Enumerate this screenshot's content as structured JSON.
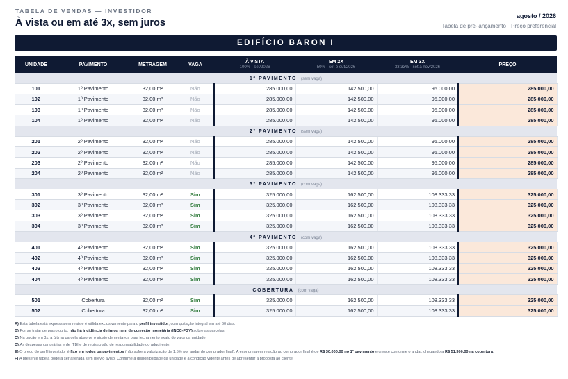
{
  "header": {
    "eyebrow": "TABELA DE VENDAS — INVESTIDOR",
    "title": "À vista ou em até 3x, sem juros",
    "date": "agosto / 2026",
    "subtitle": "Tabela de pré-lançamento · Preço preferencial"
  },
  "banner": "EDIFÍCIO BARON I",
  "columns": {
    "unidade": "UNIDADE",
    "pavimento": "PAVIMENTO",
    "metragem": "METRAGEM",
    "vaga": "VAGA",
    "avista": "À VISTA",
    "avista_sub": "100% · set/2026",
    "em2x": "EM 2X",
    "em2x_sub": "50% · set e out/2026",
    "em3x": "EM 3X",
    "em3x_sub": "33,33% · set a nov/2026",
    "preco": "PREÇO"
  },
  "sections": [
    {
      "label": "1º PAVIMENTO",
      "note": "(sem vaga)",
      "rows": [
        {
          "unit": "101",
          "floor": "1º Pavimento",
          "area": "32,00 m²",
          "vaga": "Não",
          "avista": "285.000,00",
          "em2x": "142.500,00",
          "em3x": "95.000,00",
          "preco": "285.000,00"
        },
        {
          "unit": "102",
          "floor": "1º Pavimento",
          "area": "32,00 m²",
          "vaga": "Não",
          "avista": "285.000,00",
          "em2x": "142.500,00",
          "em3x": "95.000,00",
          "preco": "285.000,00"
        },
        {
          "unit": "103",
          "floor": "1º Pavimento",
          "area": "32,00 m²",
          "vaga": "Não",
          "avista": "285.000,00",
          "em2x": "142.500,00",
          "em3x": "95.000,00",
          "preco": "285.000,00"
        },
        {
          "unit": "104",
          "floor": "1º Pavimento",
          "area": "32,00 m²",
          "vaga": "Não",
          "avista": "285.000,00",
          "em2x": "142.500,00",
          "em3x": "95.000,00",
          "preco": "285.000,00"
        }
      ]
    },
    {
      "label": "2º PAVIMENTO",
      "note": "(sem vaga)",
      "rows": [
        {
          "unit": "201",
          "floor": "2º Pavimento",
          "area": "32,00 m²",
          "vaga": "Não",
          "avista": "285.000,00",
          "em2x": "142.500,00",
          "em3x": "95.000,00",
          "preco": "285.000,00"
        },
        {
          "unit": "202",
          "floor": "2º Pavimento",
          "area": "32,00 m²",
          "vaga": "Não",
          "avista": "285.000,00",
          "em2x": "142.500,00",
          "em3x": "95.000,00",
          "preco": "285.000,00"
        },
        {
          "unit": "203",
          "floor": "2º Pavimento",
          "area": "32,00 m²",
          "vaga": "Não",
          "avista": "285.000,00",
          "em2x": "142.500,00",
          "em3x": "95.000,00",
          "preco": "285.000,00"
        },
        {
          "unit": "204",
          "floor": "2º Pavimento",
          "area": "32,00 m²",
          "vaga": "Não",
          "avista": "285.000,00",
          "em2x": "142.500,00",
          "em3x": "95.000,00",
          "preco": "285.000,00"
        }
      ]
    },
    {
      "label": "3º PAVIMENTO",
      "note": "(com vaga)",
      "rows": [
        {
          "unit": "301",
          "floor": "3º Pavimento",
          "area": "32,00 m²",
          "vaga": "Sim",
          "avista": "325.000,00",
          "em2x": "162.500,00",
          "em3x": "108.333,33",
          "preco": "325.000,00"
        },
        {
          "unit": "302",
          "floor": "3º Pavimento",
          "area": "32,00 m²",
          "vaga": "Sim",
          "avista": "325.000,00",
          "em2x": "162.500,00",
          "em3x": "108.333,33",
          "preco": "325.000,00"
        },
        {
          "unit": "303",
          "floor": "3º Pavimento",
          "area": "32,00 m²",
          "vaga": "Sim",
          "avista": "325.000,00",
          "em2x": "162.500,00",
          "em3x": "108.333,33",
          "preco": "325.000,00"
        },
        {
          "unit": "304",
          "floor": "3º Pavimento",
          "area": "32,00 m²",
          "vaga": "Sim",
          "avista": "325.000,00",
          "em2x": "162.500,00",
          "em3x": "108.333,33",
          "preco": "325.000,00"
        }
      ]
    },
    {
      "label": "4º PAVIMENTO",
      "note": "(com vaga)",
      "rows": [
        {
          "unit": "401",
          "floor": "4º Pavimento",
          "area": "32,00 m²",
          "vaga": "Sim",
          "avista": "325.000,00",
          "em2x": "162.500,00",
          "em3x": "108.333,33",
          "preco": "325.000,00"
        },
        {
          "unit": "402",
          "floor": "4º Pavimento",
          "area": "32,00 m²",
          "vaga": "Sim",
          "avista": "325.000,00",
          "em2x": "162.500,00",
          "em3x": "108.333,33",
          "preco": "325.000,00"
        },
        {
          "unit": "403",
          "floor": "4º Pavimento",
          "area": "32,00 m²",
          "vaga": "Sim",
          "avista": "325.000,00",
          "em2x": "162.500,00",
          "em3x": "108.333,33",
          "preco": "325.000,00"
        },
        {
          "unit": "404",
          "floor": "4º Pavimento",
          "area": "32,00 m²",
          "vaga": "Sim",
          "avista": "325.000,00",
          "em2x": "162.500,00",
          "em3x": "108.333,33",
          "preco": "325.000,00"
        }
      ]
    },
    {
      "label": "COBERTURA",
      "note": "(com vaga)",
      "rows": [
        {
          "unit": "501",
          "floor": "Cobertura",
          "area": "32,00 m²",
          "vaga": "Sim",
          "avista": "325.000,00",
          "em2x": "162.500,00",
          "em3x": "108.333,33",
          "preco": "325.000,00"
        },
        {
          "unit": "502",
          "floor": "Cobertura",
          "area": "32,00 m²",
          "vaga": "Sim",
          "avista": "325.000,00",
          "em2x": "162.500,00",
          "em3x": "108.333,33",
          "preco": "325.000,00"
        }
      ]
    }
  ],
  "notes": [
    [
      {
        "t": "A) ",
        "b": true
      },
      {
        "t": "Esta tabela está expressa em reais e é válida exclusivamente para o "
      },
      {
        "t": "perfil investidor",
        "b": true
      },
      {
        "t": ", com quitação integral em até 60 dias."
      }
    ],
    [
      {
        "t": "B) ",
        "b": true
      },
      {
        "t": "Por se tratar de prazo curto, "
      },
      {
        "t": "não há incidência de juros nem de correção monetária (INCC-FGV)",
        "b": true
      },
      {
        "t": " sobre as parcelas."
      }
    ],
    [
      {
        "t": "C) ",
        "b": true
      },
      {
        "t": "Na opção em 3x, a última parcela absorve o ajuste de centavos para fechamento exato do valor da unidade."
      }
    ],
    [
      {
        "t": "D) ",
        "b": true
      },
      {
        "t": "As despesas cartorárias e de ITBI e de registro são de responsabilidade do adquirente."
      }
    ],
    [
      {
        "t": "E) ",
        "b": true
      },
      {
        "t": "O preço do perfil investidor é "
      },
      {
        "t": "fixo em todos os pavimentos",
        "b": true
      },
      {
        "t": " (não sofre a valorização de 1,5% por andar do comprador final). A economia em relação ao comprador final é de "
      },
      {
        "t": "R$ 30.000,00 no 1º pavimento",
        "b": true
      },
      {
        "t": " e cresce conforme o andar, chegando a "
      },
      {
        "t": "R$ 51.300,00 na cobertura",
        "b": true
      },
      {
        "t": "."
      }
    ],
    [
      {
        "t": "F) ",
        "b": true
      },
      {
        "t": "A presente tabela poderá ser alterada sem prévio aviso. Confirme a disponibilidade da unidade e a condição vigente antes de apresentar a proposta ao cliente."
      }
    ]
  ]
}
